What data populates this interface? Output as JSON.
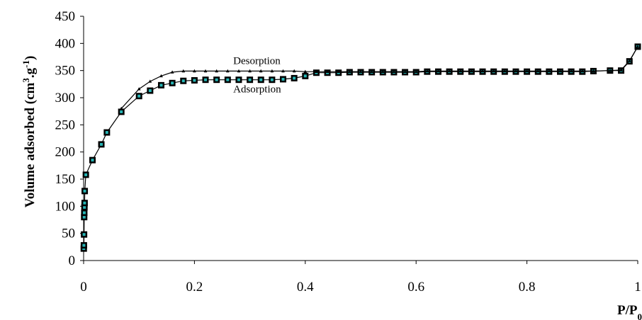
{
  "chart_data": {
    "type": "line",
    "xlabel": {
      "main": "P/P",
      "sub": "0"
    },
    "ylabel": {
      "pre": "Volume adsorbed (cm",
      "sup1": "3",
      "mid": ".g",
      "sup2": "-1",
      "post": ")"
    },
    "xlim": [
      0,
      1
    ],
    "ylim": [
      0,
      450
    ],
    "xticks": [
      0,
      0.2,
      0.4,
      0.6,
      0.8,
      1
    ],
    "xtick_labels": [
      "0",
      "0.2",
      "0.4",
      "0.6",
      "0.8",
      "1"
    ],
    "yticks": [
      0,
      50,
      100,
      150,
      200,
      250,
      300,
      350,
      400,
      450
    ],
    "ytick_labels": [
      "0",
      "50",
      "100",
      "150",
      "200",
      "250",
      "300",
      "350",
      "400",
      "450"
    ],
    "grid": false,
    "series": [
      {
        "name": "Adsorption",
        "marker": "square",
        "color": "#000000",
        "marker_fill": "#000000",
        "marker_inner": "#26b4b4",
        "x": [
          0.0003,
          0.0005,
          0.0008,
          0.001,
          0.0012,
          0.0015,
          0.0018,
          0.002,
          0.004,
          0.016,
          0.032,
          0.042,
          0.068,
          0.1,
          0.12,
          0.14,
          0.16,
          0.18,
          0.2,
          0.22,
          0.24,
          0.26,
          0.28,
          0.3,
          0.32,
          0.34,
          0.36,
          0.38,
          0.4,
          0.42,
          0.44,
          0.46,
          0.48,
          0.5,
          0.52,
          0.54,
          0.56,
          0.58,
          0.6,
          0.62,
          0.64,
          0.66,
          0.68,
          0.7,
          0.72,
          0.74,
          0.76,
          0.78,
          0.8,
          0.82,
          0.84,
          0.86,
          0.88,
          0.9,
          0.92,
          0.95,
          0.97,
          0.985,
          1.0
        ],
        "y": [
          22,
          28,
          48,
          80,
          88,
          98,
          106,
          128,
          158,
          185,
          214,
          236,
          274,
          303,
          313,
          323,
          327,
          331,
          332,
          333,
          333,
          333,
          333,
          333,
          333,
          333,
          334,
          336,
          340,
          346,
          346,
          346,
          347,
          347,
          347,
          347,
          347,
          347,
          347,
          348,
          348,
          348,
          348,
          348,
          348,
          348,
          348,
          348,
          348,
          348,
          348,
          348,
          348,
          348,
          349,
          350,
          350,
          367,
          394
        ]
      },
      {
        "name": "Desorption",
        "marker": "triangle",
        "color": "#000000",
        "x": [
          1.0,
          0.985,
          0.97,
          0.95,
          0.92,
          0.9,
          0.88,
          0.86,
          0.84,
          0.82,
          0.8,
          0.78,
          0.76,
          0.74,
          0.72,
          0.7,
          0.68,
          0.66,
          0.64,
          0.62,
          0.6,
          0.58,
          0.56,
          0.54,
          0.52,
          0.5,
          0.48,
          0.46,
          0.44,
          0.42,
          0.4,
          0.38,
          0.36,
          0.34,
          0.32,
          0.3,
          0.28,
          0.26,
          0.24,
          0.22,
          0.2,
          0.18,
          0.16,
          0.14,
          0.12,
          0.1,
          0.068
        ],
        "y": [
          394,
          368,
          351,
          350,
          349,
          349,
          349,
          349,
          349,
          349,
          349,
          349,
          349,
          349,
          349,
          349,
          349,
          349,
          349,
          349,
          348,
          348,
          348,
          348,
          348,
          348,
          348,
          348,
          348,
          348,
          348,
          349,
          349,
          349,
          349,
          349,
          349,
          349,
          349,
          349,
          349,
          349,
          347,
          340,
          330,
          316,
          280
        ]
      }
    ],
    "annotations": [
      {
        "text": "Desorption",
        "x": 0.27,
        "y": 362
      },
      {
        "text": "Adsorption",
        "x": 0.27,
        "y": 310
      }
    ]
  }
}
